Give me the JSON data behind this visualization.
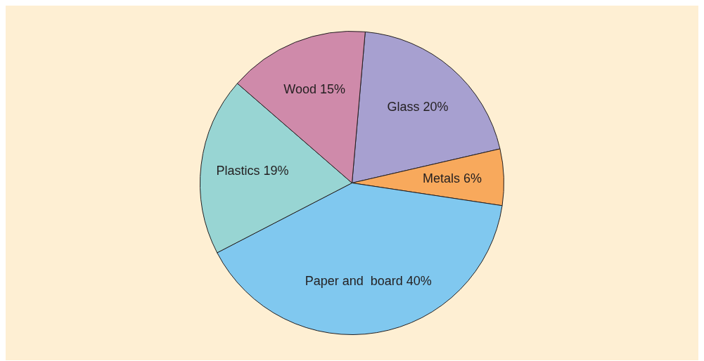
{
  "chart_data": {
    "type": "pie",
    "categories": [
      "Glass",
      "Metals",
      "Paper and  board",
      "Plastics",
      "Wood"
    ],
    "values": [
      20,
      6,
      40,
      19,
      15
    ],
    "value_labels": [
      "20%",
      "6%",
      "40%",
      "19%",
      "15%"
    ],
    "colors": [
      "#a7a0d0",
      "#f8a95c",
      "#80c8ef",
      "#98d5d3",
      "#cf8aaa"
    ],
    "legend": false
  }
}
